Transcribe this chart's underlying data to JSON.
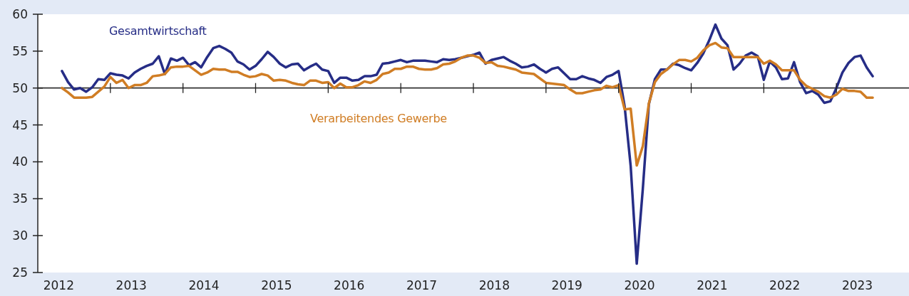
{
  "chart_data": {
    "type": "line",
    "x": [
      "2012-05",
      "2012-06",
      "2012-07",
      "2012-08",
      "2012-09",
      "2012-10",
      "2012-11",
      "2012-12",
      "2013-01",
      "2013-02",
      "2013-03",
      "2013-04",
      "2013-05",
      "2013-06",
      "2013-07",
      "2013-08",
      "2013-09",
      "2013-10",
      "2013-11",
      "2013-12",
      "2014-01",
      "2014-02",
      "2014-03",
      "2014-04",
      "2014-05",
      "2014-06",
      "2014-07",
      "2014-08",
      "2014-09",
      "2014-10",
      "2014-11",
      "2014-12",
      "2015-01",
      "2015-02",
      "2015-03",
      "2015-04",
      "2015-05",
      "2015-06",
      "2015-07",
      "2015-08",
      "2015-09",
      "2015-10",
      "2015-11",
      "2015-12",
      "2016-01",
      "2016-02",
      "2016-03",
      "2016-04",
      "2016-05",
      "2016-06",
      "2016-07",
      "2016-08",
      "2016-09",
      "2016-10",
      "2016-11",
      "2016-12",
      "2017-01",
      "2017-02",
      "2017-03",
      "2017-04",
      "2017-05",
      "2017-06",
      "2017-07",
      "2017-08",
      "2017-09",
      "2017-10",
      "2017-11",
      "2017-12",
      "2018-01",
      "2018-02",
      "2018-03",
      "2018-04",
      "2018-05",
      "2018-06",
      "2018-07",
      "2018-08",
      "2018-09",
      "2018-10",
      "2018-11",
      "2018-12",
      "2019-01",
      "2019-02",
      "2019-03",
      "2019-04",
      "2019-05",
      "2019-06",
      "2019-07",
      "2019-08",
      "2019-09",
      "2019-10",
      "2019-11",
      "2019-12",
      "2020-01",
      "2020-02",
      "2020-03",
      "2020-04",
      "2020-05",
      "2020-06",
      "2020-07",
      "2020-08",
      "2020-09",
      "2020-10",
      "2020-11",
      "2020-12",
      "2021-01",
      "2021-02",
      "2021-03",
      "2021-04",
      "2021-05",
      "2021-06",
      "2021-07",
      "2021-08",
      "2021-09",
      "2021-10",
      "2021-11",
      "2021-12",
      "2022-01",
      "2022-02",
      "2022-03",
      "2022-04",
      "2022-05",
      "2022-06",
      "2022-07",
      "2022-08",
      "2022-09",
      "2022-10",
      "2022-11",
      "2022-12",
      "2023-01",
      "2023-02",
      "2023-03",
      "2023-04",
      "2023-05",
      "2023-06",
      "2023-07"
    ],
    "series": [
      {
        "name": "Gesamtwirtschaft",
        "color": "#262d86",
        "values": [
          52.3,
          50.8,
          49.8,
          50.0,
          49.5,
          50.1,
          51.2,
          51.1,
          52.0,
          51.8,
          51.7,
          51.3,
          52.1,
          52.6,
          53.0,
          53.3,
          54.3,
          51.9,
          54.0,
          53.7,
          54.1,
          53.1,
          53.5,
          52.8,
          54.2,
          55.4,
          55.7,
          55.3,
          54.8,
          53.6,
          53.2,
          52.5,
          53.0,
          53.9,
          54.9,
          54.2,
          53.3,
          52.8,
          53.2,
          53.3,
          52.4,
          52.9,
          53.3,
          52.5,
          52.3,
          50.7,
          51.4,
          51.4,
          51.0,
          51.1,
          51.6,
          51.6,
          51.8,
          53.3,
          53.4,
          53.6,
          53.8,
          53.5,
          53.7,
          53.7,
          53.7,
          53.6,
          53.5,
          53.9,
          53.8,
          53.9,
          54.1,
          54.3,
          54.5,
          54.8,
          53.3,
          53.8,
          54.0,
          54.2,
          53.7,
          53.3,
          52.8,
          52.9,
          53.2,
          52.6,
          52.1,
          52.6,
          52.8,
          52.0,
          51.2,
          51.2,
          51.6,
          51.3,
          51.1,
          50.7,
          51.5,
          51.8,
          52.3,
          47.5,
          39.4,
          26.2,
          36.3,
          47.8,
          51.2,
          52.5,
          52.5,
          53.3,
          53.1,
          52.7,
          52.4,
          53.4,
          54.7,
          56.5,
          58.6,
          56.7,
          55.8,
          52.5,
          53.3,
          54.4,
          54.8,
          54.3,
          51.1,
          53.6,
          52.8,
          51.2,
          51.3,
          53.5,
          50.8,
          49.3,
          49.6,
          49.1,
          48.0,
          48.2,
          50.0,
          52.1,
          53.4,
          54.2,
          54.4,
          52.8,
          51.6
        ]
      },
      {
        "name": "Verarbeitendes Gewerbe",
        "color": "#d07d24",
        "values": [
          50.0,
          49.4,
          48.7,
          48.7,
          48.7,
          48.8,
          49.5,
          50.2,
          51.5,
          50.7,
          51.1,
          50.0,
          50.4,
          50.4,
          50.7,
          51.6,
          51.7,
          51.9,
          52.8,
          52.9,
          52.9,
          53.0,
          52.4,
          51.8,
          52.1,
          52.6,
          52.5,
          52.5,
          52.2,
          52.2,
          51.8,
          51.5,
          51.6,
          51.9,
          51.7,
          51.0,
          51.1,
          51.0,
          50.7,
          50.5,
          50.4,
          51.0,
          51.0,
          50.7,
          50.8,
          50.0,
          50.6,
          50.1,
          50.1,
          50.4,
          50.9,
          50.7,
          51.1,
          51.9,
          52.1,
          52.6,
          52.6,
          52.9,
          52.9,
          52.6,
          52.5,
          52.5,
          52.7,
          53.2,
          53.3,
          53.6,
          54.1,
          54.4,
          54.4,
          54.1,
          53.4,
          53.5,
          53.0,
          52.9,
          52.7,
          52.5,
          52.1,
          52.0,
          51.9,
          51.3,
          50.7,
          50.6,
          50.5,
          50.4,
          49.8,
          49.3,
          49.3,
          49.5,
          49.7,
          49.8,
          50.3,
          50.1,
          50.4,
          47.1,
          47.2,
          39.5,
          42.1,
          47.9,
          50.8,
          51.9,
          52.5,
          53.2,
          53.8,
          53.8,
          53.6,
          54.1,
          55.1,
          55.8,
          56.1,
          55.5,
          55.4,
          54.2,
          54.2,
          54.2,
          54.2,
          54.2,
          53.3,
          53.7,
          53.2,
          52.4,
          52.4,
          52.4,
          51.1,
          50.3,
          49.9,
          49.5,
          48.9,
          48.7,
          49.1,
          49.9,
          49.6,
          49.6,
          49.5,
          48.7,
          48.7
        ]
      }
    ],
    "xlim": [
      "2012-01",
      "2024-01"
    ],
    "xticks": [
      {
        "value": "2012-04-15",
        "label": "2012"
      },
      {
        "value": "2013-04-15",
        "label": "2013"
      },
      {
        "value": "2014-04-15",
        "label": "2014"
      },
      {
        "value": "2015-04-15",
        "label": "2015"
      },
      {
        "value": "2016-04-15",
        "label": "2016"
      },
      {
        "value": "2017-04-15",
        "label": "2017"
      },
      {
        "value": "2018-04-15",
        "label": "2018"
      },
      {
        "value": "2019-04-15",
        "label": "2019"
      },
      {
        "value": "2020-04-15",
        "label": "2020"
      },
      {
        "value": "2021-04-15",
        "label": "2021"
      },
      {
        "value": "2022-04-15",
        "label": "2022"
      },
      {
        "value": "2023-04-15",
        "label": "2023"
      }
    ],
    "ylim": [
      25,
      60
    ],
    "yticks": [
      25,
      30,
      35,
      40,
      45,
      50,
      55,
      60
    ],
    "ref_lines": [
      {
        "axis": "y",
        "value": 50,
        "color": "#333333"
      }
    ],
    "grid": false,
    "line_style": "solid",
    "marker": "none"
  }
}
